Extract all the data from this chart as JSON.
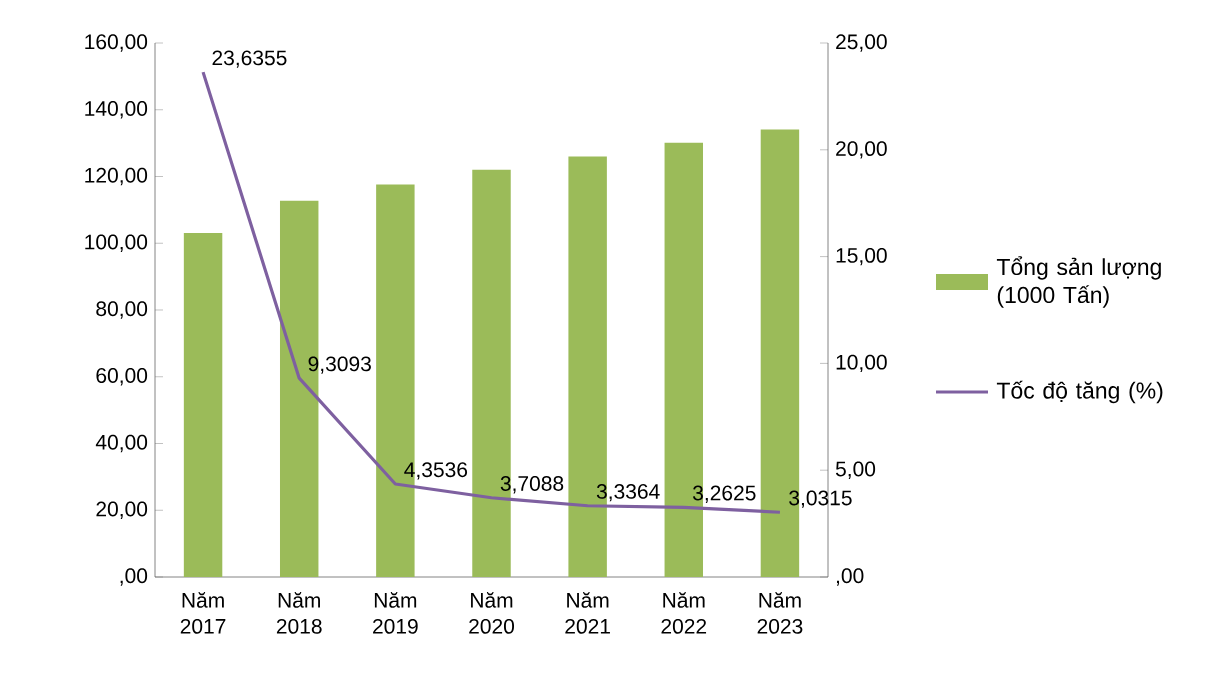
{
  "chart_data": {
    "type": "bar",
    "categories": [
      "Năm 2017",
      "Năm 2018",
      "Năm 2019",
      "Năm 2020",
      "Năm 2021",
      "Năm 2022",
      "Năm 2023"
    ],
    "series": [
      {
        "name": "Tổng sản lượng (1000 Tấn)",
        "color": "#9bbb59",
        "values": [
          103.1,
          112.7,
          117.6,
          122.0,
          126.0,
          130.1,
          134.1
        ]
      },
      {
        "name": "Tốc độ tăng (%)",
        "type": "line",
        "axis": "y2",
        "color": "#7e60a0",
        "values": [
          23.6355,
          9.3093,
          4.3536,
          3.7088,
          3.3364,
          3.2625,
          3.0315
        ],
        "value_labels": [
          "23,6355",
          "9,3093",
          "4,3536",
          "3,7088",
          "3,3364",
          "3,2625",
          "3,0315"
        ]
      }
    ],
    "ylim": [
      0,
      160
    ],
    "yticks": [
      {
        "value": 0,
        "label": ",00"
      },
      {
        "value": 20,
        "label": "20,00"
      },
      {
        "value": 40,
        "label": "40,00"
      },
      {
        "value": 60,
        "label": "60,00"
      },
      {
        "value": 80,
        "label": "80,00"
      },
      {
        "value": 100,
        "label": "100,00"
      },
      {
        "value": 120,
        "label": "120,00"
      },
      {
        "value": 140,
        "label": "140,00"
      },
      {
        "value": 160,
        "label": "160,00"
      }
    ],
    "y2lim": [
      0,
      25
    ],
    "y2ticks": [
      {
        "value": 0,
        "label": ",00"
      },
      {
        "value": 5,
        "label": "5,00"
      },
      {
        "value": 10,
        "label": "10,00"
      },
      {
        "value": 15,
        "label": "15,00"
      },
      {
        "value": 20,
        "label": "20,00"
      },
      {
        "value": 25,
        "label": "25,00"
      }
    ],
    "legend": "right",
    "grid": false,
    "marker": "none"
  }
}
